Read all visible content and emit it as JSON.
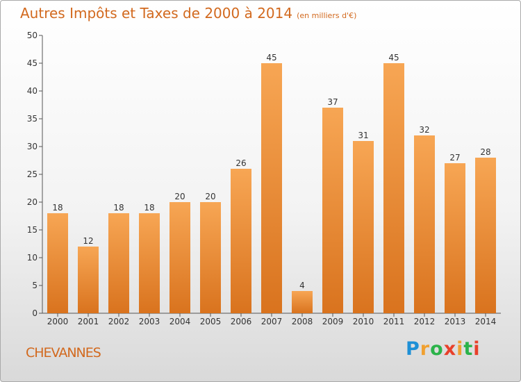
{
  "chart_data": {
    "type": "bar",
    "title": "Autres Impôts et Taxes de 2000 à 2014",
    "subtitle": "(en milliers d'€)",
    "categories": [
      "2000",
      "2001",
      "2002",
      "2003",
      "2004",
      "2005",
      "2006",
      "2007",
      "2008",
      "2009",
      "2010",
      "2011",
      "2012",
      "2013",
      "2014"
    ],
    "values": [
      18,
      12,
      18,
      18,
      20,
      20,
      26,
      45,
      4,
      37,
      31,
      45,
      32,
      27,
      28
    ],
    "ylim": [
      0,
      50
    ],
    "yticks": [
      0,
      5,
      10,
      15,
      20,
      25,
      30,
      35,
      40,
      45,
      50
    ],
    "xlabel": "",
    "ylabel": "",
    "grid": false,
    "bar_color_top": "#f7a654",
    "bar_color_bottom": "#d9731e"
  },
  "footer": {
    "town": "CHEVANNES",
    "logo": {
      "text": "Proxiti",
      "letter_colors": [
        "#1e90d6",
        "#f0a030",
        "#2bb34a",
        "#e8402a",
        "#f0a030",
        "#2bb34a",
        "#e8402a"
      ]
    }
  },
  "colors": {
    "title": "#d2691e",
    "axis": "#555555",
    "text": "#333333"
  }
}
